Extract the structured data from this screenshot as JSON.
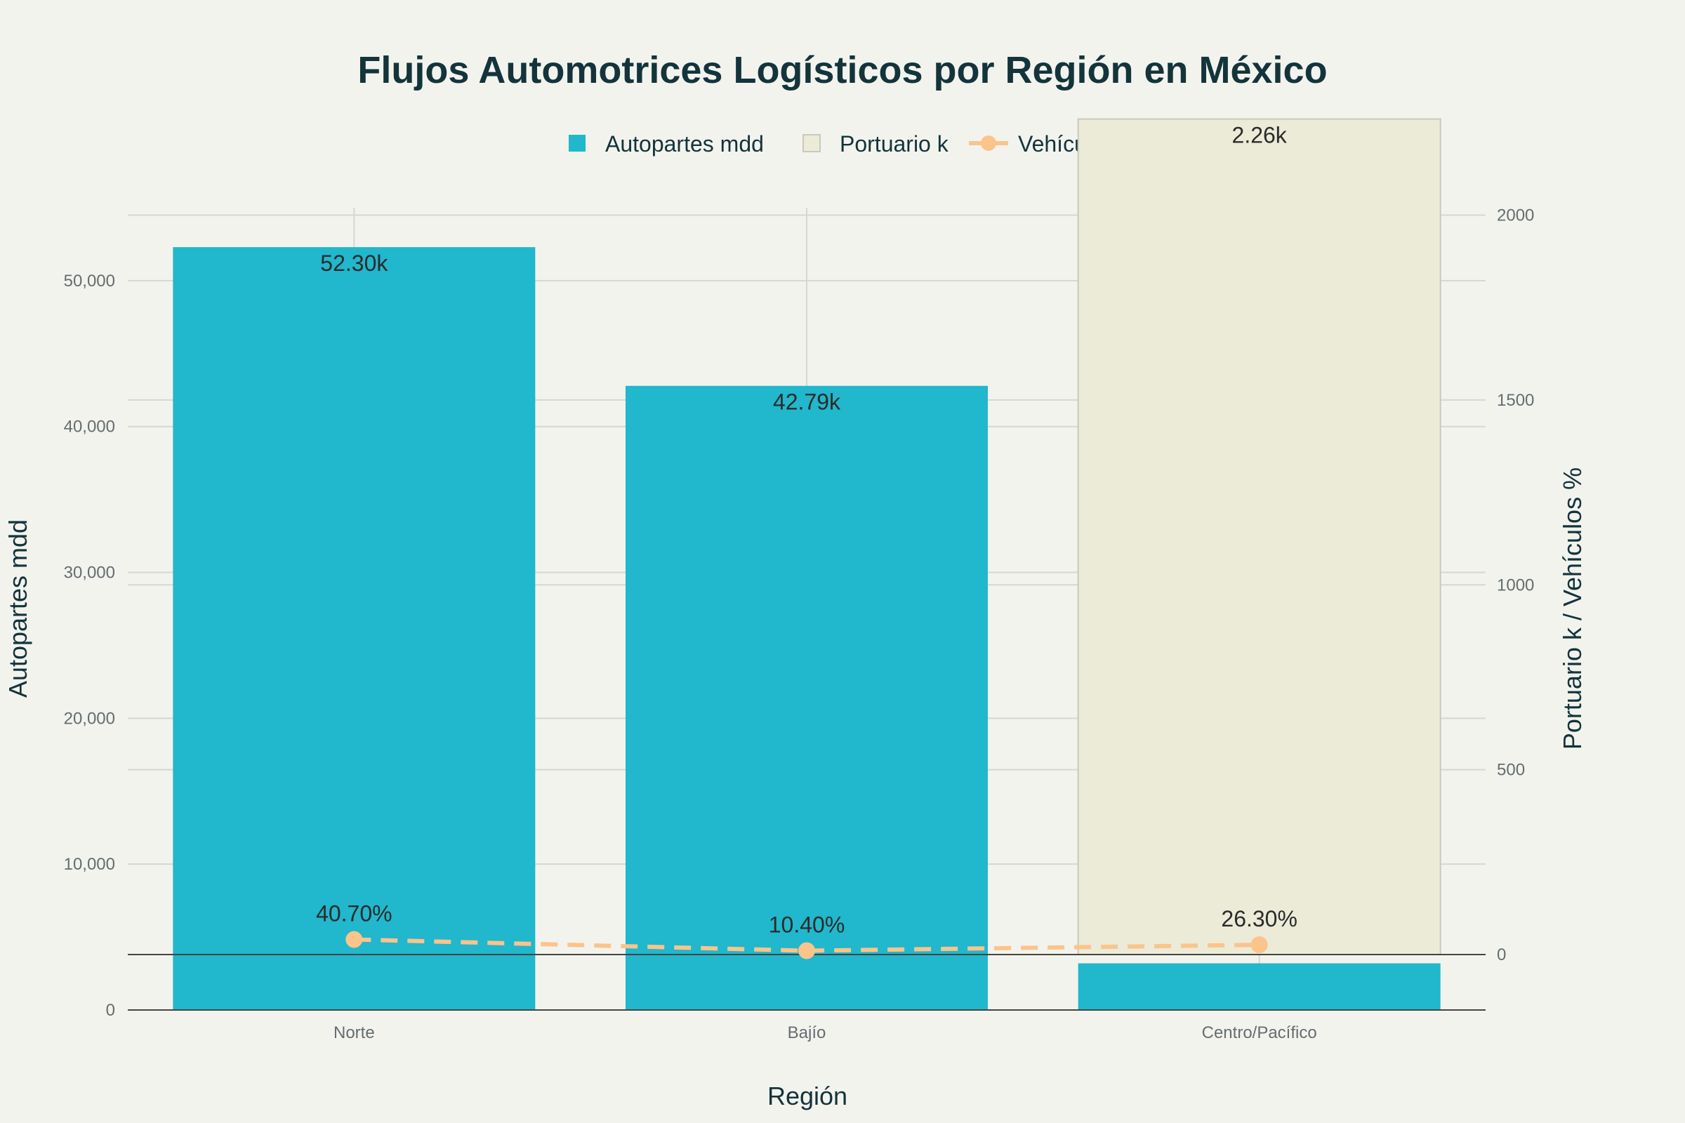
{
  "chart_data": {
    "type": "bar",
    "title": "Flujos Automotrices Logísticos por Región en México",
    "xlabel": "Región",
    "ylabel": "Autopartes mdd",
    "y2label": "Portuario k / Vehículos %",
    "categories": [
      "Norte",
      "Bajío",
      "Centro/Pacífico"
    ],
    "ylim": [
      0,
      55000
    ],
    "y2lim": [
      -150,
      2020
    ],
    "yticks": [
      0,
      10000,
      20000,
      30000,
      40000,
      50000
    ],
    "yticklabels": [
      "0",
      "10,000",
      "20,000",
      "30,000",
      "40,000",
      "50,000"
    ],
    "y2ticks": [
      0,
      500,
      1000,
      1500,
      2000
    ],
    "y2ticklabels": [
      "0",
      "500",
      "1000",
      "1500",
      "2000"
    ],
    "legend_position": "top-center",
    "grid": true,
    "series": [
      {
        "name": "Autopartes mdd",
        "type": "bar",
        "axis": "y",
        "color": "#21b7cc",
        "values": [
          52300,
          42790,
          3200
        ],
        "labels": [
          "52.30k",
          "42.79k",
          ""
        ]
      },
      {
        "name": "Portuario k",
        "type": "bar",
        "axis": "y2",
        "color": "#ebebd8",
        "values": [
          null,
          null,
          2260
        ],
        "labels": [
          "",
          "",
          "2.26k"
        ]
      },
      {
        "name": "Vehículos %",
        "type": "line",
        "axis": "y2",
        "color": "#fbc48b",
        "values": [
          40.7,
          10.4,
          26.3
        ],
        "labels": [
          "40.70%",
          "10.40%",
          "26.30%"
        ]
      }
    ]
  }
}
